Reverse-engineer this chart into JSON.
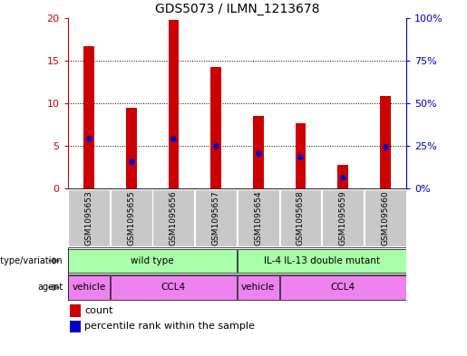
{
  "title": "GDS5073 / ILMN_1213678",
  "samples": [
    "GSM1095653",
    "GSM1095655",
    "GSM1095656",
    "GSM1095657",
    "GSM1095654",
    "GSM1095658",
    "GSM1095659",
    "GSM1095660"
  ],
  "counts": [
    16.7,
    9.5,
    19.7,
    14.2,
    8.5,
    7.7,
    2.8,
    10.8
  ],
  "percentile_ranks": [
    29.5,
    16.0,
    29.5,
    25.0,
    21.0,
    18.5,
    6.5,
    24.5
  ],
  "ylim_left": [
    0,
    20
  ],
  "ylim_right": [
    0,
    100
  ],
  "yticks_left": [
    0,
    5,
    10,
    15,
    20
  ],
  "yticks_right": [
    0,
    25,
    50,
    75,
    100
  ],
  "bar_color": "#cc0000",
  "dot_color": "#0000cc",
  "title_fontsize": 10,
  "ax_label_color_left": "#cc0000",
  "ax_label_color_right": "#0000cc",
  "genotype_groups": [
    {
      "label": "wild type",
      "start": 0,
      "end": 4,
      "color": "#aaffaa"
    },
    {
      "label": "IL-4 IL-13 double mutant",
      "start": 4,
      "end": 8,
      "color": "#aaffaa"
    }
  ],
  "agent_groups": [
    {
      "label": "vehicle",
      "start": 0,
      "end": 1,
      "color": "#ee82ee"
    },
    {
      "label": "CCL4",
      "start": 1,
      "end": 4,
      "color": "#ee82ee"
    },
    {
      "label": "vehicle",
      "start": 4,
      "end": 5,
      "color": "#ee82ee"
    },
    {
      "label": "CCL4",
      "start": 5,
      "end": 8,
      "color": "#ee82ee"
    }
  ],
  "legend_count_color": "#cc0000",
  "legend_percentile_color": "#0000cc",
  "sample_bg_color": "#c8c8c8"
}
